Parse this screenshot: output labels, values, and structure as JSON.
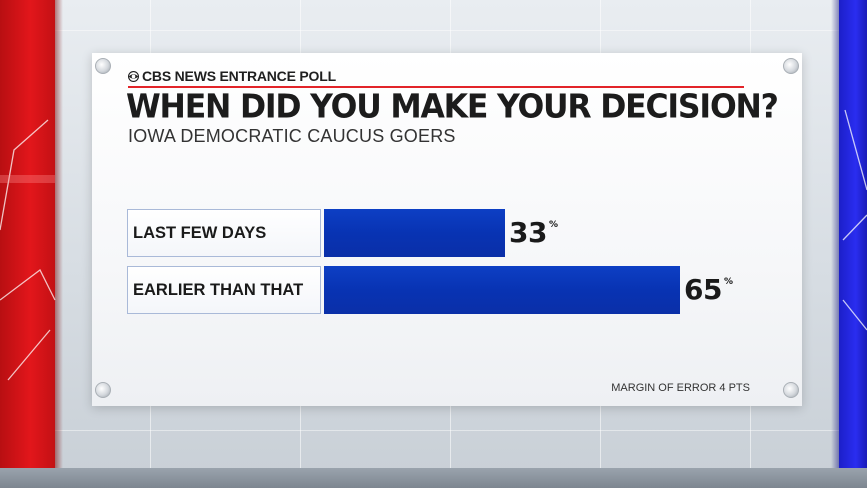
{
  "brand": {
    "logo_icon": "cbs-eye-icon",
    "label": "CBS NEWS ENTRANCE POLL",
    "accent_color": "#e22429"
  },
  "footnote": "MARGIN OF ERROR 4 PTS",
  "chart_data": {
    "type": "bar",
    "orientation": "horizontal",
    "title": "WHEN DID YOU MAKE YOUR DECISION?",
    "subtitle": "IOWA DEMOCRATIC CAUCUS GOERS",
    "categories": [
      "LAST FEW DAYS",
      "EARLIER THAN THAT"
    ],
    "values": [
      33,
      65
    ],
    "value_suffix": "%",
    "xlim": [
      0,
      100
    ],
    "bar_color": "#0b37b8",
    "grid": false,
    "legend": "none"
  }
}
